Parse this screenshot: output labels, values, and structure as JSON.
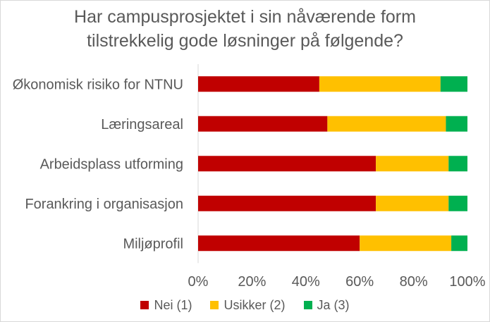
{
  "chart_data": {
    "type": "bar",
    "orientation": "horizontal",
    "stacked": true,
    "normalized_percent": true,
    "title_lines": [
      "Har campusprosjektet i sin nåværende form",
      "tilstrekkelig gode løsninger på følgende?"
    ],
    "categories": [
      "Økonomisk risiko for NTNU",
      "Læringsareal",
      "Arbeidsplass utforming",
      "Forankring i organisasjon",
      "Miljøprofil"
    ],
    "series": [
      {
        "name": "Nei (1)",
        "color": "#C00000",
        "values": [
          45,
          48,
          66,
          66,
          60
        ]
      },
      {
        "name": "Usikker (2)",
        "color": "#FFC000",
        "values": [
          45,
          44,
          27,
          27,
          34
        ]
      },
      {
        "name": "Ja (3)",
        "color": "#00B050",
        "values": [
          10,
          8,
          7,
          7,
          6
        ]
      }
    ],
    "xlim": [
      0,
      100
    ],
    "x_ticks": [
      "0%",
      "20%",
      "40%",
      "60%",
      "80%",
      "100%"
    ],
    "grid": false,
    "legend_position": "bottom"
  }
}
